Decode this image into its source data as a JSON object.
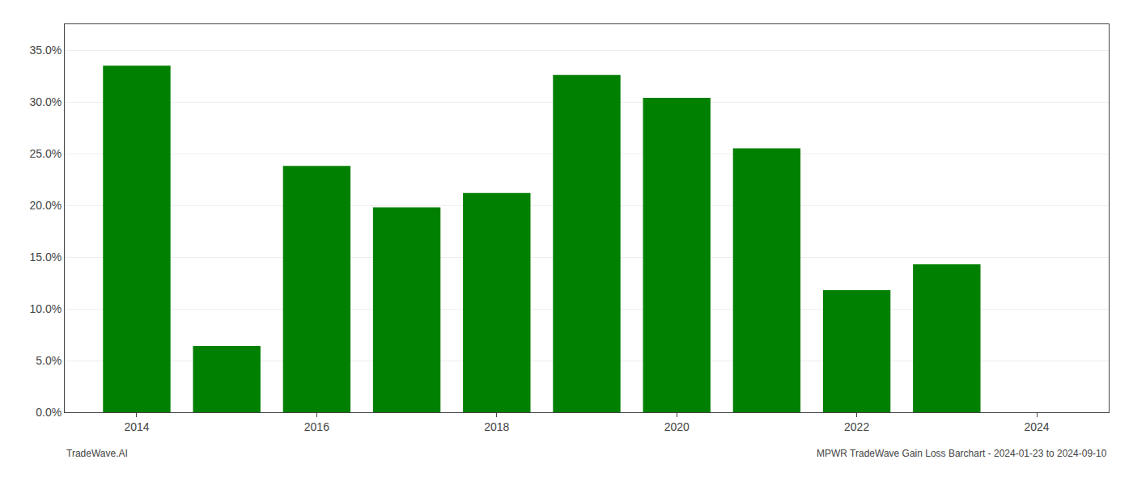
{
  "chart_data": {
    "type": "bar",
    "x": [
      2014,
      2015,
      2016,
      2017,
      2018,
      2019,
      2020,
      2021,
      2022,
      2023
    ],
    "values": [
      0.335,
      0.064,
      0.238,
      0.198,
      0.212,
      0.326,
      0.304,
      0.255,
      0.118,
      0.143
    ],
    "color": "#008000",
    "xlim": [
      2013.2,
      2024.8
    ],
    "xticks": [
      2014,
      2016,
      2018,
      2020,
      2022,
      2024
    ],
    "ylim": [
      0,
      0.375
    ],
    "yticks": [
      {
        "value": 0.0,
        "label": "0.0%"
      },
      {
        "value": 0.05,
        "label": "5.0%"
      },
      {
        "value": 0.1,
        "label": "10.0%"
      },
      {
        "value": 0.15,
        "label": "15.0%"
      },
      {
        "value": 0.2,
        "label": "20.0%"
      },
      {
        "value": 0.25,
        "label": "25.0%"
      },
      {
        "value": 0.3,
        "label": "30.0%"
      },
      {
        "value": 0.35,
        "label": "35.0%"
      }
    ],
    "grid": true,
    "annotations": [
      "TradeWave.AI",
      "MPWR TradeWave Gain Loss Barchart - 2024-01-23 to 2024-09-10"
    ]
  }
}
